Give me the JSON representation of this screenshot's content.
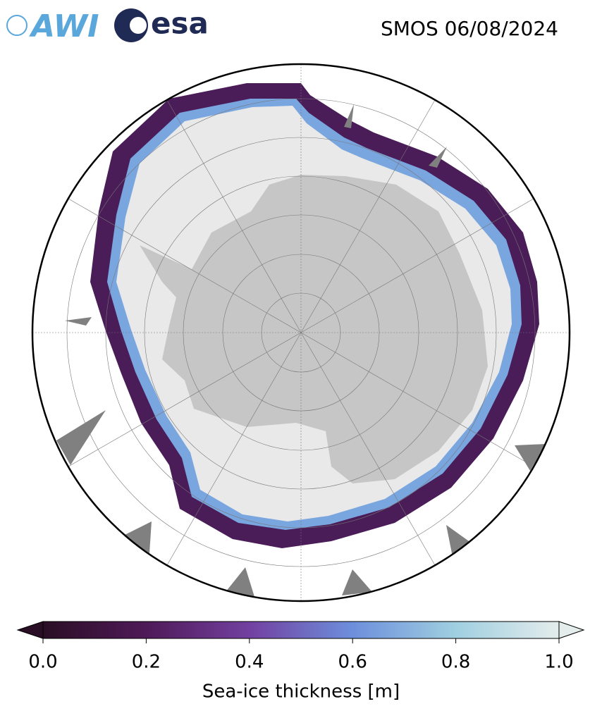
{
  "logos": [
    "AWI",
    "esa"
  ],
  "title": "SMOS 06/08/2024",
  "colorbar": {
    "label": "Sea-ice thickness [m]",
    "lim": [
      0,
      1
    ],
    "ticks": [
      {
        "value": 0,
        "label": "0.0"
      },
      {
        "value": 0.2,
        "label": "0.2"
      },
      {
        "value": 0.4,
        "label": "0.4"
      },
      {
        "value": 0.6,
        "label": "0.6"
      },
      {
        "value": 0.8,
        "label": "0.8"
      },
      {
        "value": 1,
        "label": "1.0"
      }
    ],
    "colormap": [
      "#2a0e25",
      "#4f1a58",
      "#7240a0",
      "#6d8fdc",
      "#a0cfe0",
      "#e4ecec"
    ]
  }
}
